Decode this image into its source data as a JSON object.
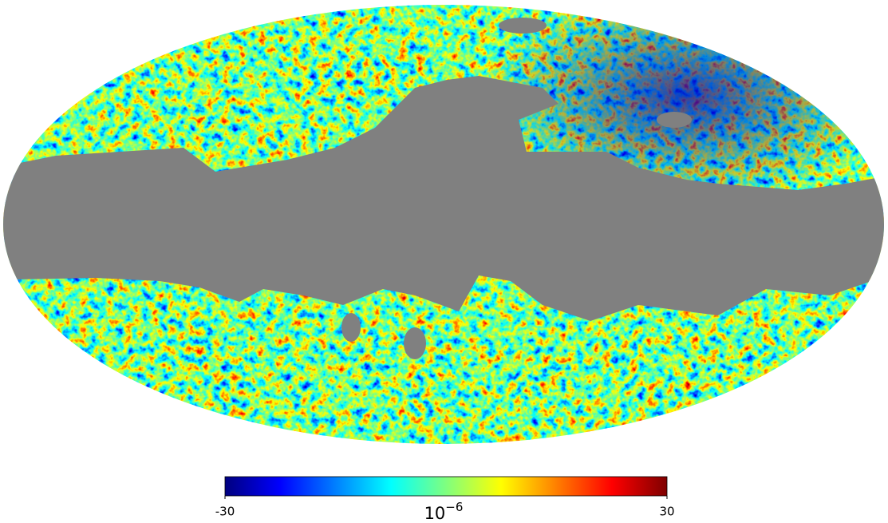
{
  "chart_data": {
    "type": "colorbar",
    "colorbar": {
      "lim": [
        -30,
        30
      ],
      "ticks": [
        -30,
        30
      ],
      "label": {
        "base": "10",
        "exponent": "−6"
      },
      "colormap": [
        "#00007f",
        "#0000ff",
        "#007fff",
        "#00ffff",
        "#7fff7f",
        "#ffff00",
        "#ff7f00",
        "#ff0000",
        "#7f0000"
      ]
    }
  }
}
